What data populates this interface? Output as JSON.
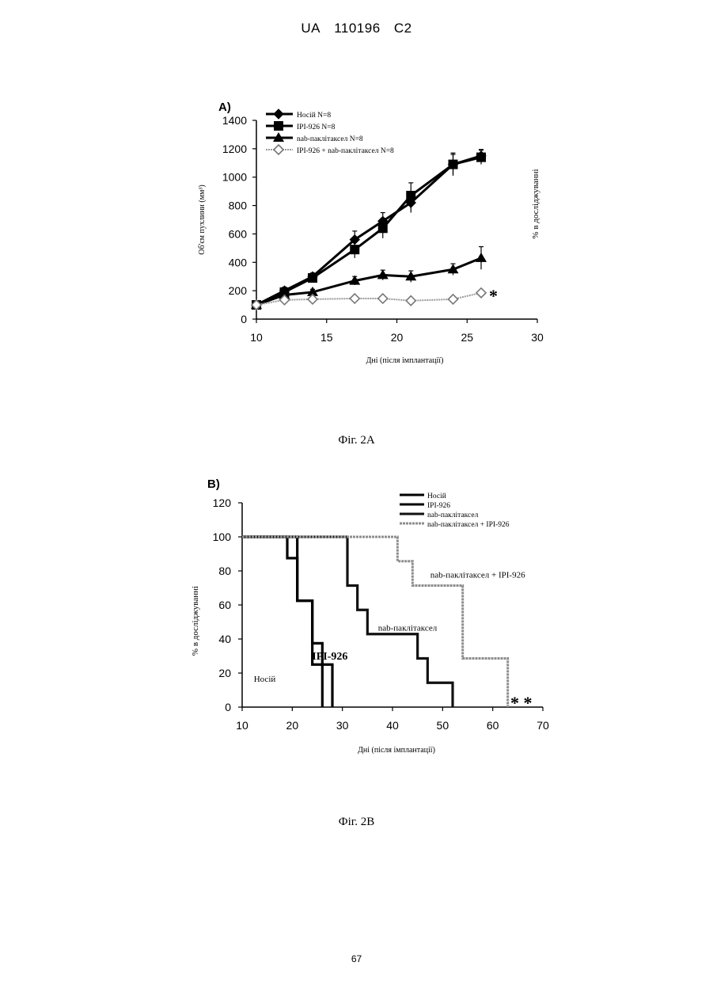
{
  "header": {
    "country": "UA",
    "number": "110196",
    "kind": "C2"
  },
  "page_number": "67",
  "figures": [
    {
      "caption": "Фіг. 2А"
    },
    {
      "caption": "Фіг. 2В"
    }
  ],
  "chart_data": [
    {
      "type": "line",
      "panel_label": "А)",
      "xlabel": "Дні (після імплантації)",
      "ylabel": "Об'єм пухлини (мм³)",
      "right_label": "% в досліджуванні",
      "xlim": [
        10,
        30
      ],
      "ylim": [
        0,
        1400
      ],
      "xticks": [
        10,
        15,
        20,
        25,
        30
      ],
      "yticks": [
        0,
        200,
        400,
        600,
        800,
        1000,
        1200,
        1400
      ],
      "significance": "*",
      "series": [
        {
          "name": "Носій N=8",
          "marker": "diamond",
          "color": "#000000",
          "x": [
            10,
            12,
            14,
            17,
            19,
            21,
            24,
            26
          ],
          "y": [
            100,
            200,
            300,
            560,
            690,
            820,
            1090,
            1150
          ],
          "err": [
            0,
            25,
            25,
            60,
            60,
            70,
            70,
            45
          ]
        },
        {
          "name": "IPI-926 N=8",
          "marker": "square",
          "color": "#000000",
          "x": [
            10,
            12,
            14,
            17,
            19,
            21,
            24,
            26
          ],
          "y": [
            100,
            190,
            290,
            490,
            640,
            870,
            1090,
            1140
          ],
          "err": [
            0,
            25,
            30,
            60,
            70,
            90,
            80,
            50
          ]
        },
        {
          "name": "nab-паклітаксел N=8",
          "marker": "triangle",
          "color": "#000000",
          "x": [
            10,
            12,
            14,
            17,
            19,
            21,
            24,
            26
          ],
          "y": [
            100,
            170,
            190,
            270,
            310,
            300,
            350,
            430
          ],
          "err": [
            0,
            20,
            20,
            30,
            35,
            40,
            40,
            80
          ]
        },
        {
          "name": "IPI-926 + nab-паклітаксел N=8",
          "marker": "open-diamond",
          "color": "#9a9a9a",
          "x": [
            10,
            12,
            14,
            17,
            19,
            21,
            24,
            26
          ],
          "y": [
            100,
            135,
            140,
            145,
            145,
            130,
            140,
            185
          ],
          "err": [
            0,
            10,
            10,
            10,
            10,
            10,
            10,
            15
          ]
        }
      ]
    },
    {
      "type": "step",
      "panel_label": "В)",
      "xlabel": "Дні (після імплантації)",
      "ylabel": "% в досліджуванні",
      "xlim": [
        10,
        70
      ],
      "ylim": [
        0,
        120
      ],
      "xticks": [
        10,
        20,
        30,
        40,
        50,
        60,
        70
      ],
      "yticks": [
        0,
        20,
        40,
        60,
        80,
        100,
        120
      ],
      "significance": "* *",
      "series": [
        {
          "name": "Носій",
          "color": "#000000",
          "width": 3.2,
          "steps": [
            [
              0,
              100
            ],
            [
              19,
              100
            ],
            [
              19,
              87.5
            ],
            [
              21,
              87.5
            ],
            [
              21,
              62.5
            ],
            [
              24,
              62.5
            ],
            [
              24,
              25
            ],
            [
              26,
              25
            ],
            [
              26,
              0
            ]
          ]
        },
        {
          "name": "IPI-926",
          "color": "#000000",
          "width": 3.2,
          "steps": [
            [
              0,
              100
            ],
            [
              21,
              100
            ],
            [
              21,
              62.5
            ],
            [
              24,
              62.5
            ],
            [
              24,
              37.5
            ],
            [
              26,
              37.5
            ],
            [
              26,
              25
            ],
            [
              28,
              25
            ],
            [
              28,
              0
            ]
          ]
        },
        {
          "name": "nab-паклітаксел",
          "color": "#111111",
          "width": 3.2,
          "steps": [
            [
              0,
              100
            ],
            [
              31,
              100
            ],
            [
              31,
              71.4
            ],
            [
              33,
              71.4
            ],
            [
              33,
              57.1
            ],
            [
              35,
              57.1
            ],
            [
              35,
              42.9
            ],
            [
              45,
              42.9
            ],
            [
              45,
              28.6
            ],
            [
              47,
              28.6
            ],
            [
              47,
              14.3
            ],
            [
              52,
              14.3
            ],
            [
              52,
              0
            ]
          ]
        },
        {
          "name": "nab-паклітаксел + IPI-926",
          "color": "#8c8c8c",
          "width": 3,
          "steps": [
            [
              0,
              100
            ],
            [
              41,
              100
            ],
            [
              41,
              85.7
            ],
            [
              44,
              85.7
            ],
            [
              44,
              71.4
            ],
            [
              54,
              71.4
            ],
            [
              54,
              28.6
            ],
            [
              63,
              28.6
            ],
            [
              63,
              0
            ]
          ]
        }
      ],
      "annotations": [
        {
          "text": "Носій",
          "x": 14.5,
          "y": 15,
          "bold": false
        },
        {
          "text": "IPI-926",
          "x": 27.5,
          "y": 28,
          "bold": true
        },
        {
          "text": "nab-паклітаксел",
          "x": 43,
          "y": 45,
          "bold": false
        },
        {
          "text": "nab-паклітаксел + IPI-926",
          "x": 57,
          "y": 76,
          "bold": false
        }
      ]
    }
  ]
}
